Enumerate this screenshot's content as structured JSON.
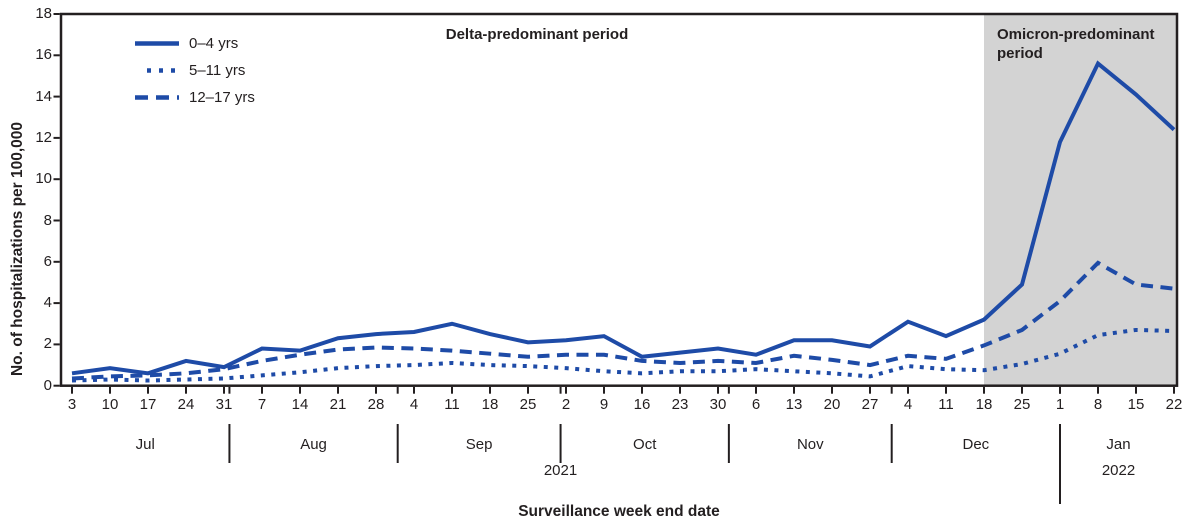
{
  "chart_data": {
    "type": "line",
    "title": "",
    "xlabel": "Surveillance week end date",
    "ylabel": "No. of hospitalizations per 100,000",
    "ylim": [
      0,
      18
    ],
    "yticks": [
      0,
      2,
      4,
      6,
      8,
      10,
      12,
      14,
      16,
      18
    ],
    "grid": false,
    "legend_position": "top-left",
    "x": [
      "Jul 3",
      "Jul 10",
      "Jul 17",
      "Jul 24",
      "Jul 31",
      "Aug 7",
      "Aug 14",
      "Aug 21",
      "Aug 28",
      "Sep 4",
      "Sep 11",
      "Sep 18",
      "Sep 25",
      "Oct 2",
      "Oct 9",
      "Oct 16",
      "Oct 23",
      "Oct 30",
      "Nov 6",
      "Nov 13",
      "Nov 20",
      "Nov 27",
      "Dec 4",
      "Dec 11",
      "Dec 18",
      "Dec 25",
      "Jan 1",
      "Jan 8",
      "Jan 15",
      "Jan 22"
    ],
    "x_tick_labels": [
      "3",
      "10",
      "17",
      "24",
      "31",
      "7",
      "14",
      "21",
      "28",
      "4",
      "11",
      "18",
      "25",
      "2",
      "9",
      "16",
      "23",
      "30",
      "6",
      "13",
      "20",
      "27",
      "4",
      "11",
      "18",
      "25",
      "1",
      "8",
      "15",
      "22"
    ],
    "months": [
      {
        "label": "Jul",
        "end_boundary_idx": 4.143
      },
      {
        "label": "Aug",
        "end_boundary_idx": 8.571
      },
      {
        "label": "Sep",
        "end_boundary_idx": 12.857
      },
      {
        "label": "Oct",
        "end_boundary_idx": 17.286
      },
      {
        "label": "Nov",
        "end_boundary_idx": 21.571
      },
      {
        "label": "Dec",
        "end_boundary_idx": 26
      },
      {
        "label": "Jan",
        "end_boundary_idx": null
      }
    ],
    "years": [
      {
        "label": "2021"
      },
      {
        "label": "2022"
      }
    ],
    "year_separator_idx": 26,
    "series": [
      {
        "name": "0–4 yrs",
        "style": "solid",
        "values": [
          0.6,
          0.85,
          0.6,
          1.2,
          0.9,
          1.8,
          1.7,
          2.3,
          2.5,
          2.6,
          3.0,
          2.5,
          2.1,
          2.2,
          2.4,
          1.4,
          1.6,
          1.8,
          1.5,
          2.2,
          2.2,
          1.9,
          3.1,
          2.4,
          3.2,
          4.9,
          11.8,
          15.6,
          14.1,
          12.4
        ]
      },
      {
        "name": "5–11 yrs",
        "style": "dotted",
        "values": [
          0.25,
          0.3,
          0.25,
          0.3,
          0.35,
          0.5,
          0.65,
          0.85,
          0.95,
          1.0,
          1.1,
          1.0,
          0.95,
          0.85,
          0.7,
          0.6,
          0.7,
          0.7,
          0.8,
          0.7,
          0.6,
          0.45,
          0.95,
          0.8,
          0.75,
          1.05,
          1.55,
          2.45,
          2.7,
          2.65
        ]
      },
      {
        "name": "12–17 yrs",
        "style": "dashed",
        "values": [
          0.35,
          0.45,
          0.5,
          0.6,
          0.8,
          1.2,
          1.5,
          1.75,
          1.85,
          1.8,
          1.7,
          1.55,
          1.4,
          1.5,
          1.5,
          1.2,
          1.1,
          1.2,
          1.1,
          1.45,
          1.25,
          1.0,
          1.45,
          1.3,
          1.95,
          2.7,
          4.1,
          5.95,
          4.9,
          4.7
        ]
      }
    ],
    "shaded_region": {
      "start_idx": 24,
      "label": "Omicron-predominant period"
    },
    "annotations": [
      {
        "text": "Delta-predominant period"
      },
      {
        "text": "Omicron-predominant period"
      }
    ],
    "colors": {
      "line": "#1e4ba7",
      "shade": "#d3d3d3",
      "axis": "#231f20",
      "text": "#231f20"
    }
  }
}
